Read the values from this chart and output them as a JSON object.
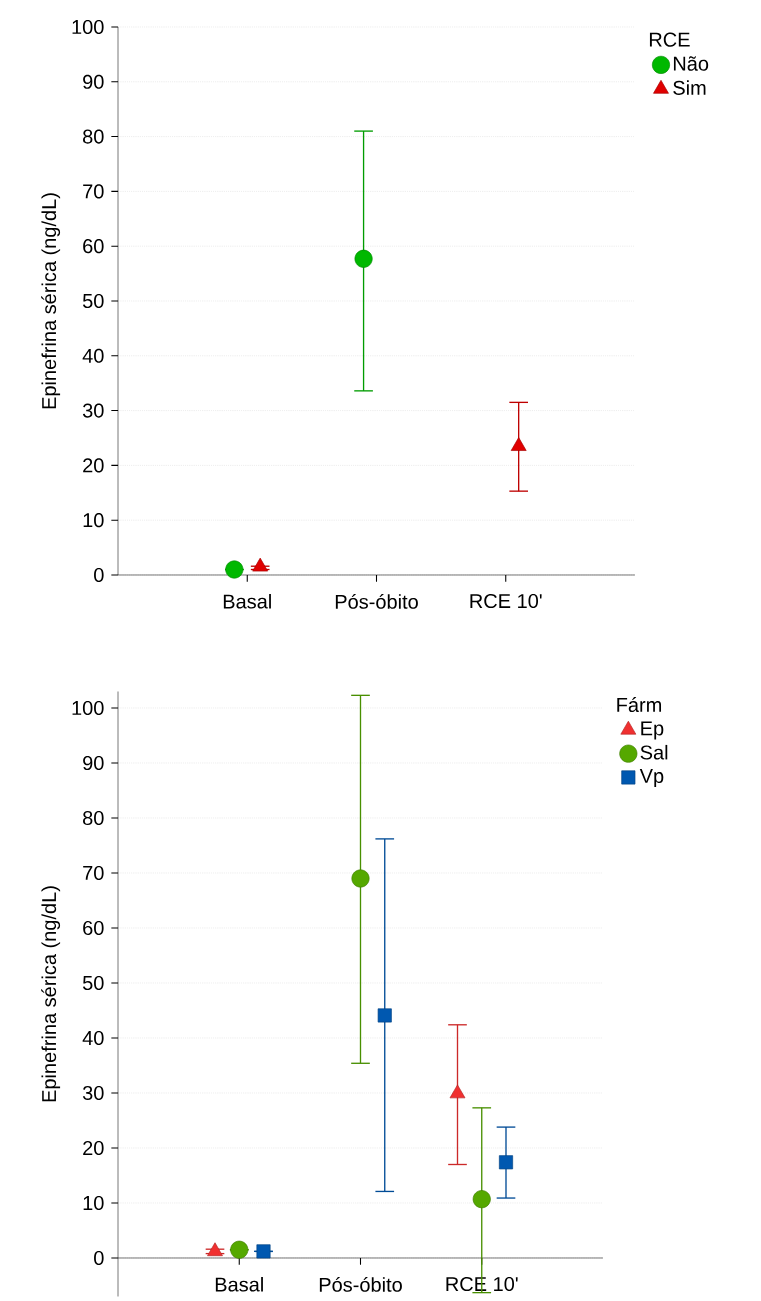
{
  "chart_data": [
    {
      "type": "scatter",
      "ylabel": "Epinefrina sérica (ng/dL)",
      "categories": [
        "Basal",
        "Pós-óbito",
        "RCE 10'"
      ],
      "ylim": [
        0,
        100
      ],
      "yticks": [
        0,
        10,
        20,
        30,
        40,
        50,
        60,
        70,
        80,
        90,
        100
      ],
      "grid": "y",
      "legend": "top right",
      "legend_title": "RCE",
      "series": [
        {
          "name": "Não",
          "color": "#00b800",
          "marker": "circle",
          "values": [
            1.0,
            57.7,
            null
          ],
          "errors": [
            null,
            [
              33.6,
              81.0
            ],
            null
          ]
        },
        {
          "name": "Sim",
          "color": "#e00000",
          "marker": "triangle",
          "values": [
            1.5,
            null,
            23.5
          ],
          "errors": [
            [
              1.0,
              1.6
            ],
            null,
            [
              15.3,
              31.5
            ]
          ]
        }
      ]
    },
    {
      "type": "scatter",
      "ylabel": "Epinefrina sérica (ng/dL)",
      "categories": [
        "Basal",
        "Pós-óbito",
        "RCE 10'"
      ],
      "ylim": [
        -7,
        103
      ],
      "yticks": [
        0,
        10,
        20,
        30,
        40,
        50,
        60,
        70,
        80,
        90,
        100
      ],
      "grid": "y",
      "legend": "top right",
      "legend_title": "Fárm",
      "series": [
        {
          "name": "Ep",
          "color": "#f03030",
          "marker": "triangle",
          "values": [
            1.2,
            null,
            29.9
          ],
          "errors": [
            [
              0.8,
              1.6
            ],
            null,
            [
              17.0,
              42.4
            ]
          ]
        },
        {
          "name": "Sal",
          "color": "#55a800",
          "marker": "circle",
          "values": [
            1.5,
            69.0,
            10.7
          ],
          "errors": [
            null,
            [
              35.4,
              102.3
            ],
            [
              -6.3,
              27.3
            ]
          ]
        },
        {
          "name": "Vp",
          "color": "#0058b0",
          "marker": "square",
          "values": [
            1.2,
            44.1,
            17.4
          ],
          "errors": [
            null,
            [
              12.1,
              76.2
            ],
            [
              10.9,
              23.8
            ]
          ]
        }
      ]
    }
  ]
}
